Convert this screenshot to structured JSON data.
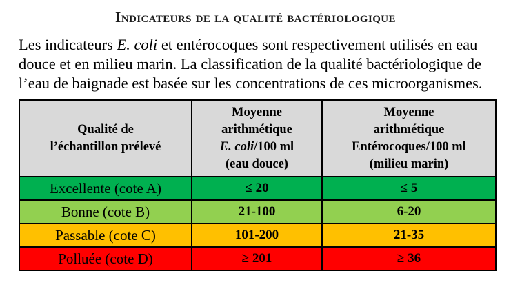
{
  "title": "Indicateurs de la qualité bactériologique",
  "paragraph": {
    "before_italic": "Les indicateurs ",
    "italic": "E. coli",
    "after_italic": " et entérocoques sont respectivement utilisés en eau douce et en milieu marin. La classification de la qualité bactériologique de l’eau de baignade est basée sur les concentrations de ces microorganismes."
  },
  "table": {
    "header_bg": "#D9D9D9",
    "border_color": "#000000",
    "headers": {
      "quality": {
        "line1": "Qualité de",
        "line2": "l’échantillon prélevé"
      },
      "ecoli": {
        "line1": "Moyenne",
        "line2": "arithmétique",
        "line3_italic": "E. coli",
        "line3_rest": "/100 ml",
        "line4": "(eau douce)"
      },
      "enterocoques": {
        "line1": "Moyenne",
        "line2": "arithmétique",
        "line3": "Entérocoques/100 ml",
        "line4": "(milieu marin)"
      }
    },
    "rows": [
      {
        "label": "Excellente (cote A)",
        "ecoli": "≤ 20",
        "enterocoques": "≤ 5",
        "bg": "#00B050"
      },
      {
        "label": "Bonne (cote B)",
        "ecoli": "21-100",
        "enterocoques": "6-20",
        "bg": "#92D050"
      },
      {
        "label": "Passable (cote C)",
        "ecoli": "101-200",
        "enterocoques": "21-35",
        "bg": "#FFC000"
      },
      {
        "label": "Polluée (cote D)",
        "ecoli": "≥ 201",
        "enterocoques": "≥ 36",
        "bg": "#FF0000"
      }
    ]
  }
}
